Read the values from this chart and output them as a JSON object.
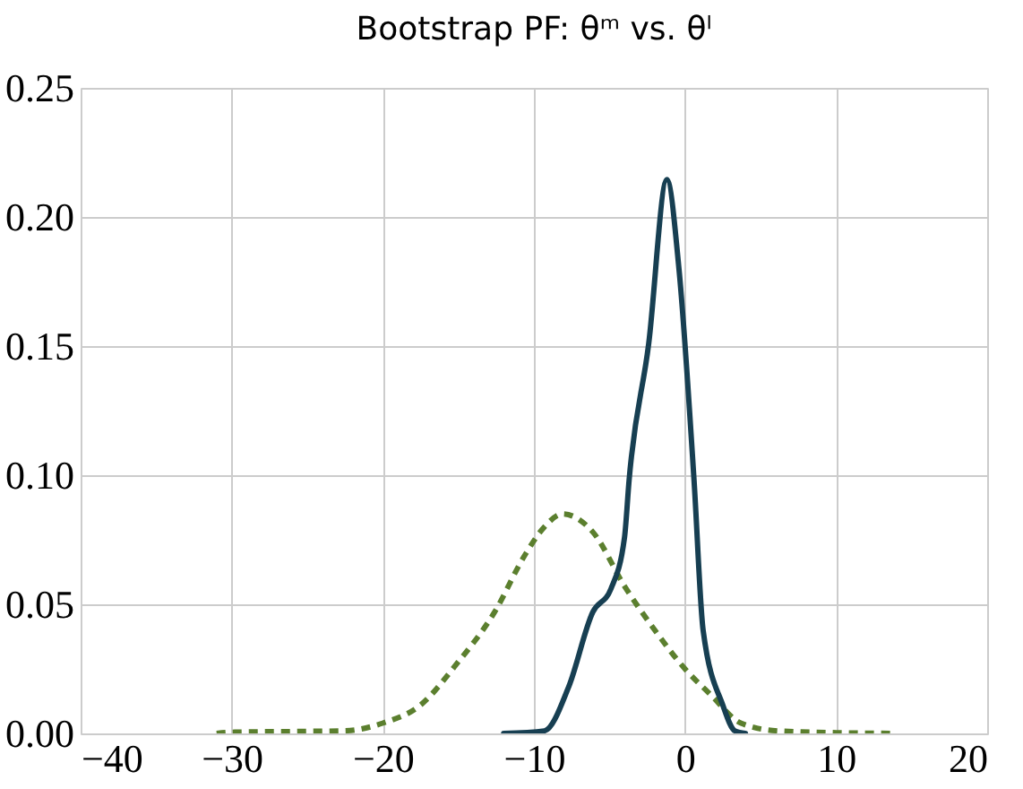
{
  "chart_data": {
    "type": "line",
    "title": "Bootstrap PF: θᵐ vs. θˡ",
    "xlim": [
      -40,
      20
    ],
    "xticks": [
      {
        "value": -40,
        "label": "−40"
      },
      {
        "value": -30,
        "label": "−30"
      },
      {
        "value": -20,
        "label": "−20"
      },
      {
        "value": -10,
        "label": "−10"
      },
      0,
      10,
      20
    ],
    "ylim": [
      0,
      0.25
    ],
    "yticks": [
      {
        "value": 0,
        "label": "0.00"
      },
      0.05,
      {
        "value": 0.1,
        "label": "0.10"
      },
      0.15,
      {
        "value": 0.2,
        "label": "0.20"
      },
      0.25
    ],
    "grid": true,
    "marker": "none",
    "series": [
      {
        "color": "#5b7f2e",
        "line_style": "dashed",
        "x": [
          -31,
          -29.8,
          -25,
          -22.5,
          -20,
          -17.5,
          -15.1,
          -12.6,
          -10.6,
          -9.3,
          -8.1,
          -6.1,
          -4.0,
          -2.0,
          0,
          1.7,
          3.7,
          6.1,
          10,
          14
        ],
        "values": [
          0,
          0.0005,
          0.0008,
          0.001,
          0.004,
          0.011,
          0.027,
          0.047,
          0.069,
          0.08,
          0.085,
          0.078,
          0.057,
          0.04,
          0.025,
          0.015,
          0.004,
          0.001,
          0.0003,
          0
        ]
      },
      {
        "color": "#173f52",
        "line_style": "solid",
        "x": [
          -12,
          -9.3,
          -7.7,
          -6.1,
          -4.9,
          -4.0,
          -3.7,
          -2.4,
          -1.2,
          -0.4,
          0.6,
          1.2,
          2.5,
          3.3,
          4
        ],
        "values": [
          0,
          0.001,
          0.018,
          0.047,
          0.056,
          0.076,
          0.098,
          0.151,
          0.2145,
          0.18,
          0.098,
          0.04,
          0.011,
          0.001,
          0
        ]
      }
    ]
  }
}
